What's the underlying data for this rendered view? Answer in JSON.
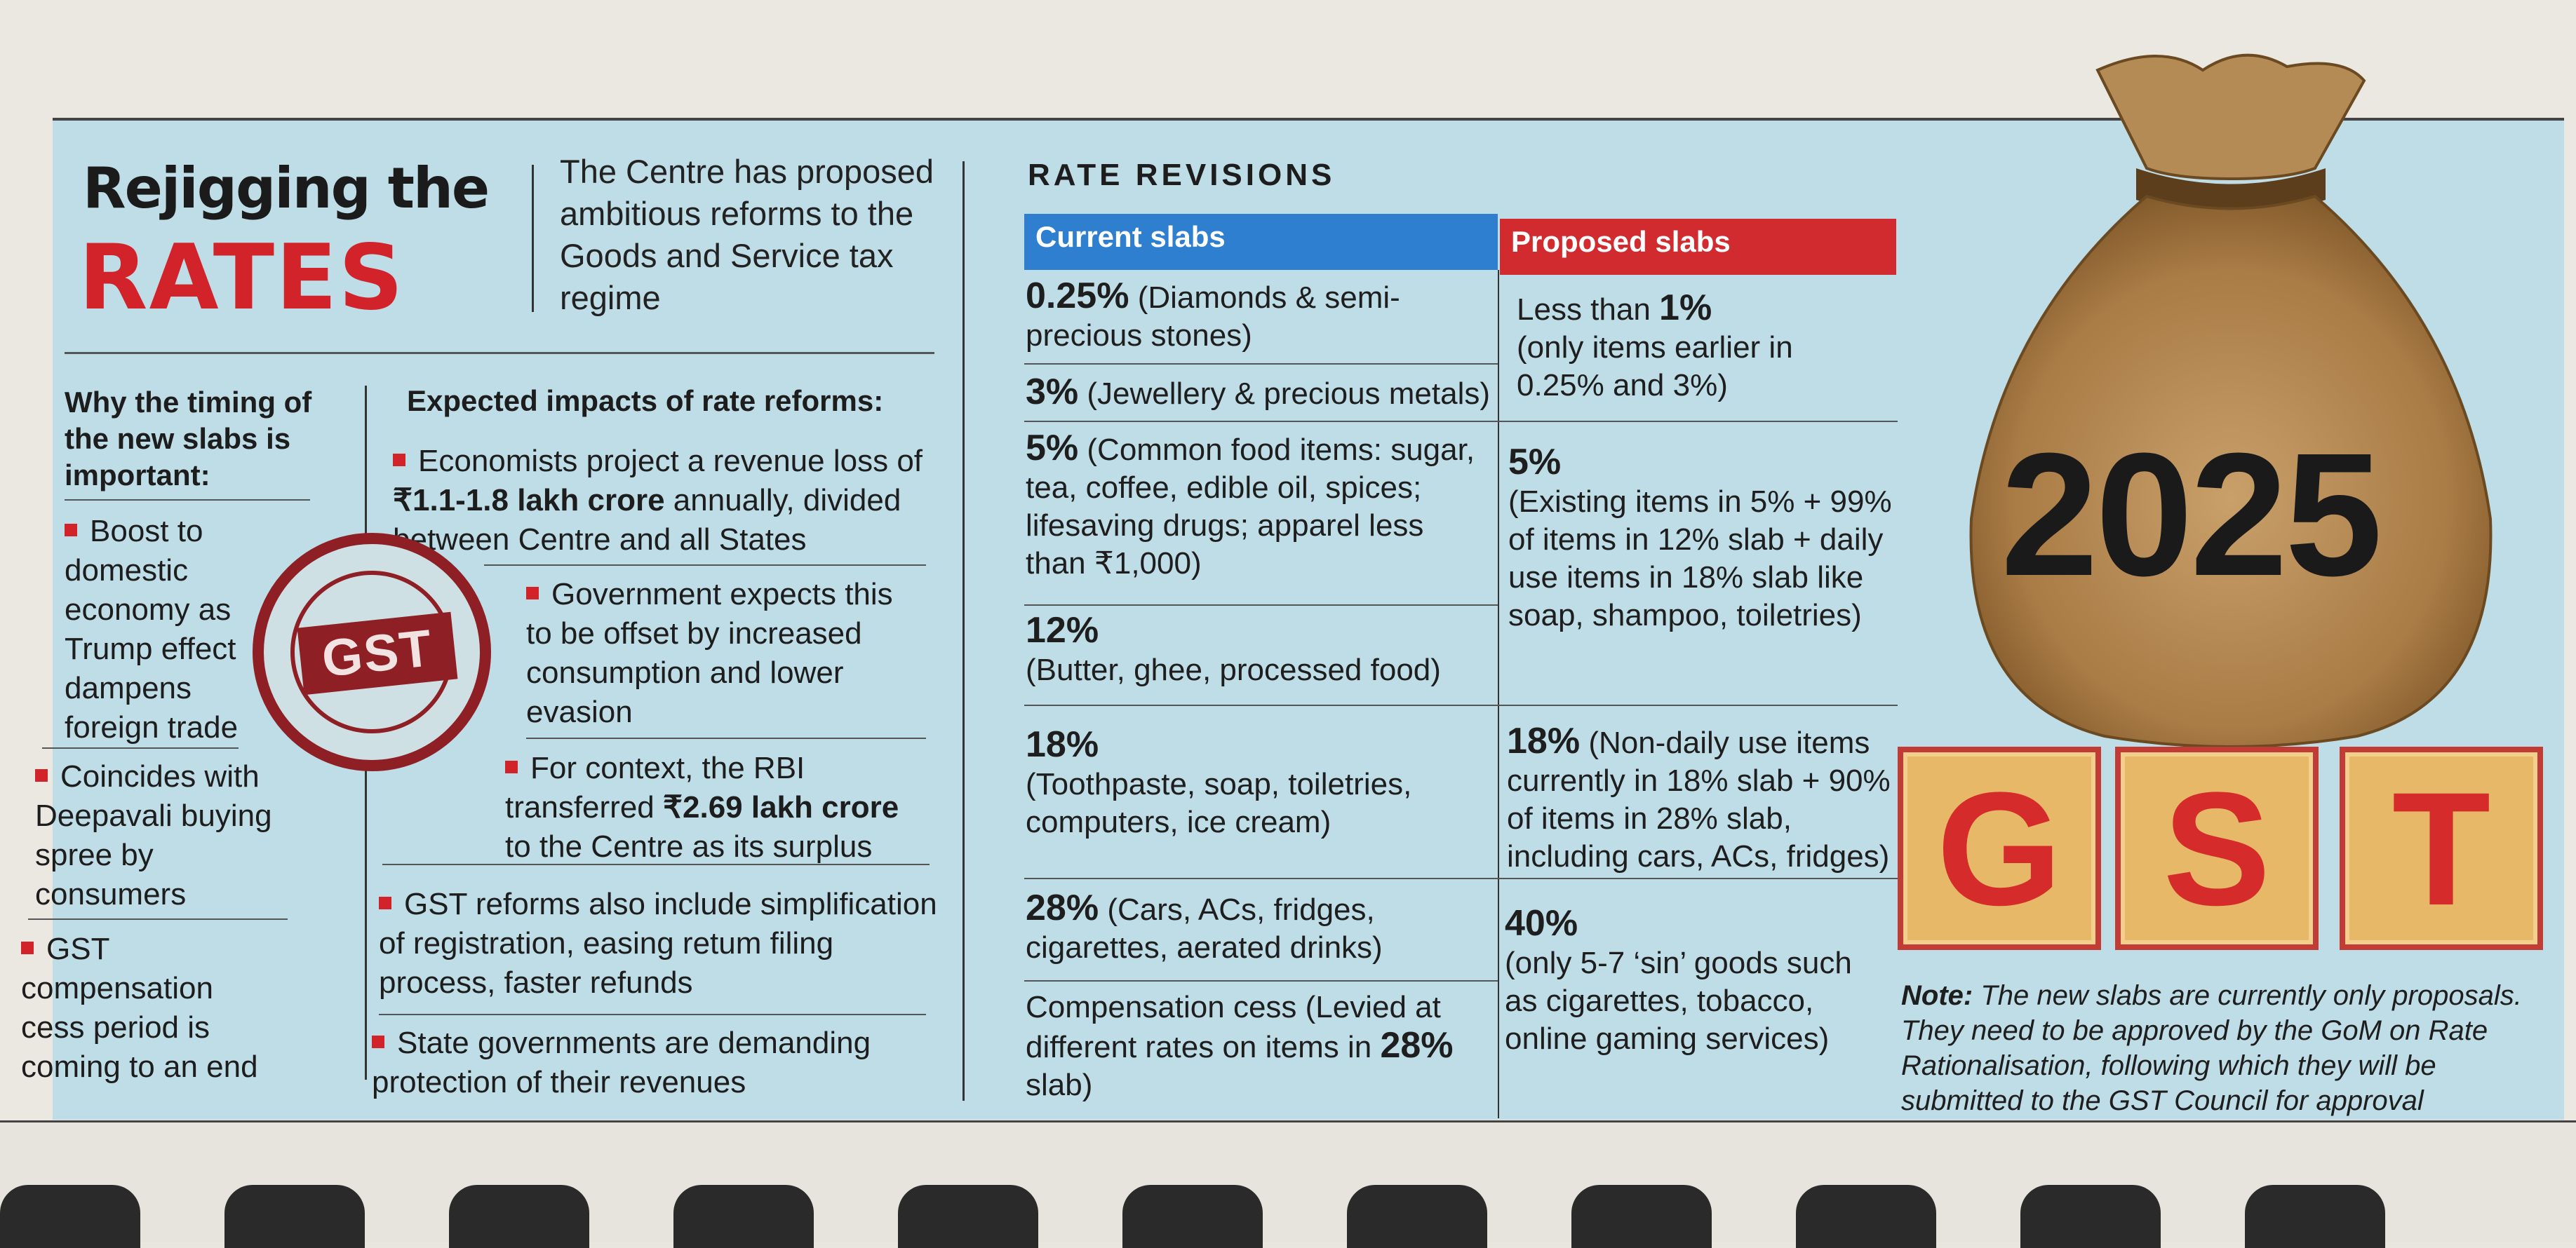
{
  "header": {
    "title_line1": "Rejigging the",
    "title_line2": "RATES",
    "intro": "The Centre has proposed ambitious reforms to the Goods and Service tax regime"
  },
  "why": {
    "heading": "Why the timing of the new slabs is important:",
    "items": [
      "Boost to domestic economy as Trump effect dampens foreign trade",
      "Coincides with Deepavali buying spree by consumers",
      "GST compensation cess period is coming to an end"
    ]
  },
  "impacts": {
    "heading": "Expected impacts of rate reforms:",
    "item1_pre": "Economists project a revenue loss of",
    "item1_bold": "₹1.1-1.8 lakh crore",
    "item1_post": "annually, divided between Centre and all States",
    "item2": "Government expects this to be offset by increased consumption and lower evasion",
    "item3_pre": "For context, the RBI transferred",
    "item3_bold": "₹2.69 lakh crore",
    "item3_post": "to the Centre as its surplus",
    "item4": "GST reforms also include simplification of registration, easing retum filing process, faster refunds",
    "item5": "State governments are demanding protection of their revenues"
  },
  "stamp": {
    "label": "GST"
  },
  "rates": {
    "heading": "RATE REVISIONS",
    "col_current": "Current slabs",
    "col_proposed": "Proposed slabs",
    "current": [
      {
        "rate": "0.25%",
        "desc": "(Diamonds & semi-precious stones)"
      },
      {
        "rate": "3%",
        "desc": "(Jewellery & precious metals)"
      },
      {
        "rate": "5%",
        "desc": "(Common food items: sugar, tea, coffee, edible oil, spices; lifesaving drugs; apparel less than ₹1,000)"
      },
      {
        "rate": "12%",
        "desc": "(Butter, ghee, processed food)"
      },
      {
        "rate": "18%",
        "desc": "(Toothpaste, soap, toiletries, computers, ice cream)"
      },
      {
        "rate": "28%",
        "desc": "(Cars, ACs, fridges, cigarettes, aerated drinks)"
      },
      {
        "rate": "",
        "desc": "Compensation cess (Levied at different rates on items in",
        "bold_tail": "28%",
        "tail": "slab)"
      }
    ],
    "proposed": [
      {
        "pre": "Less than",
        "rate": "1%",
        "desc": "(only items earlier in 0.25% and 3%)"
      },
      {
        "pre": "",
        "rate": "5%",
        "desc": "(Existing items in 5% + 99% of items in 12% slab + daily use items in 18% slab like soap, shampoo, toiletries)"
      },
      {
        "pre": "",
        "rate": "18%",
        "desc": "(Non-daily use items currently in 18% slab + 90% of items in 28% slab, including cars, ACs, fridges)"
      },
      {
        "pre": "",
        "rate": "40%",
        "desc": "(only 5-7 ‘sin’ goods such as cigarettes, tobacco, online gaming services)"
      }
    ]
  },
  "illustration": {
    "year": "2025",
    "blocks": [
      "G",
      "S",
      "T"
    ]
  },
  "note": {
    "label": "Note:",
    "text": "The new slabs are currently only proposals. They need to be approved by the GoM on Rate Rationalisation, following which they will be submitted to the GST Council for approval"
  },
  "colors": {
    "accent_red": "#d2232a",
    "header_blue": "#2f7fd0",
    "panel_blue": "#bfdde6",
    "stamp_red": "#8e1f24"
  }
}
